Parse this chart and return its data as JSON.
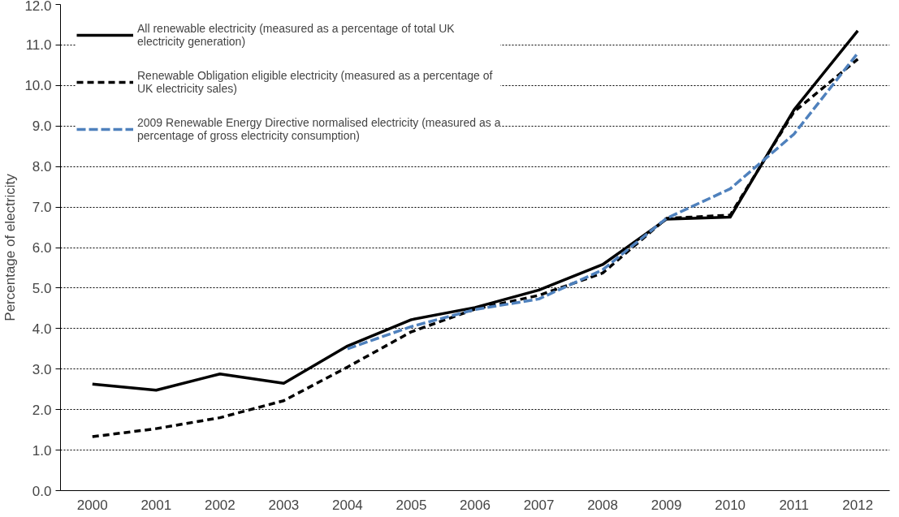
{
  "chart_data": {
    "type": "line",
    "ylabel": "Percentage of electricity",
    "categories": [
      "2000",
      "2001",
      "2002",
      "2003",
      "2004",
      "2005",
      "2006",
      "2007",
      "2008",
      "2009",
      "2010",
      "2011",
      "2012"
    ],
    "series": [
      {
        "name": "All renewable electricity (measured as a percentage of total UK electricity generation)",
        "color": "#000000",
        "line_style": "solid",
        "values": [
          2.63,
          2.48,
          2.88,
          2.65,
          3.57,
          4.22,
          4.52,
          4.95,
          5.58,
          6.7,
          6.75,
          9.4,
          11.35
        ]
      },
      {
        "name": "Renewable Obligation eligible electricity (measured as a percentage of UK electricity sales)",
        "color": "#000000",
        "line_style": "dashed",
        "values": [
          1.33,
          1.53,
          1.8,
          2.22,
          3.05,
          3.92,
          4.48,
          4.82,
          5.37,
          6.72,
          6.8,
          9.35,
          10.65
        ]
      },
      {
        "name": "2009 Renewable Energy Directive normalised electricity (measured as a percentage of gross electricity consumption)",
        "color": "#4f81bd",
        "line_style": "dashed",
        "values": [
          null,
          null,
          null,
          null,
          3.5,
          4.05,
          4.47,
          4.73,
          5.45,
          6.72,
          7.45,
          8.8,
          10.8
        ]
      }
    ],
    "ylim": [
      0,
      12
    ],
    "yticks": [
      {
        "value": 0,
        "label": "0.0"
      },
      {
        "value": 1,
        "label": "1.0"
      },
      {
        "value": 2,
        "label": "2.0"
      },
      {
        "value": 3,
        "label": "3.0"
      },
      {
        "value": 4,
        "label": "4.0"
      },
      {
        "value": 5,
        "label": "5.0"
      },
      {
        "value": 6,
        "label": "6.0"
      },
      {
        "value": 7,
        "label": "7.0"
      },
      {
        "value": 8,
        "label": "8.0"
      },
      {
        "value": 9,
        "label": "9.0"
      },
      {
        "value": 10,
        "label": "10.0"
      },
      {
        "value": 11,
        "label": "11.0"
      },
      {
        "value": 12,
        "label": "12.0"
      }
    ],
    "grid": "y",
    "legend": "top left",
    "marker": "none"
  }
}
